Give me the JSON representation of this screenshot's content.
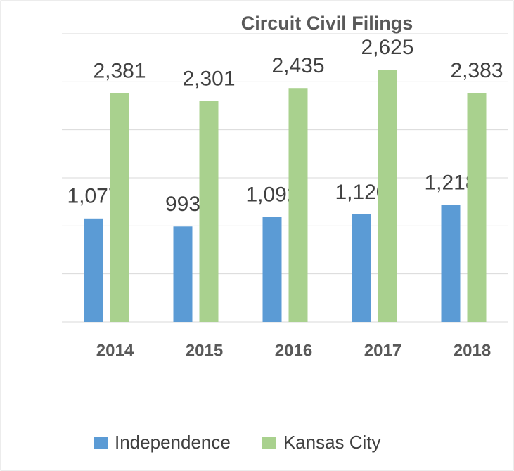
{
  "chart_data": {
    "type": "bar",
    "title": "Circuit Civil Filings",
    "categories": [
      "2014",
      "2015",
      "2016",
      "2017",
      "2018"
    ],
    "series": [
      {
        "name": "Independence",
        "color": "#5b9bd5",
        "values": [
          1077,
          993,
          1092,
          1120,
          1218
        ],
        "value_labels": [
          "1,077",
          "993",
          "1,092",
          "1,120",
          "1,218"
        ]
      },
      {
        "name": "Kansas City",
        "color": "#a9d18e",
        "values": [
          2381,
          2301,
          2435,
          2625,
          2383
        ],
        "value_labels": [
          "2,381",
          "2,301",
          "2,435",
          "2,625",
          "2,383"
        ]
      }
    ],
    "ylim": [
      0,
      3000
    ],
    "yticks": [
      0,
      500,
      1000,
      1500,
      2000,
      2500,
      3000
    ],
    "grid": true
  }
}
